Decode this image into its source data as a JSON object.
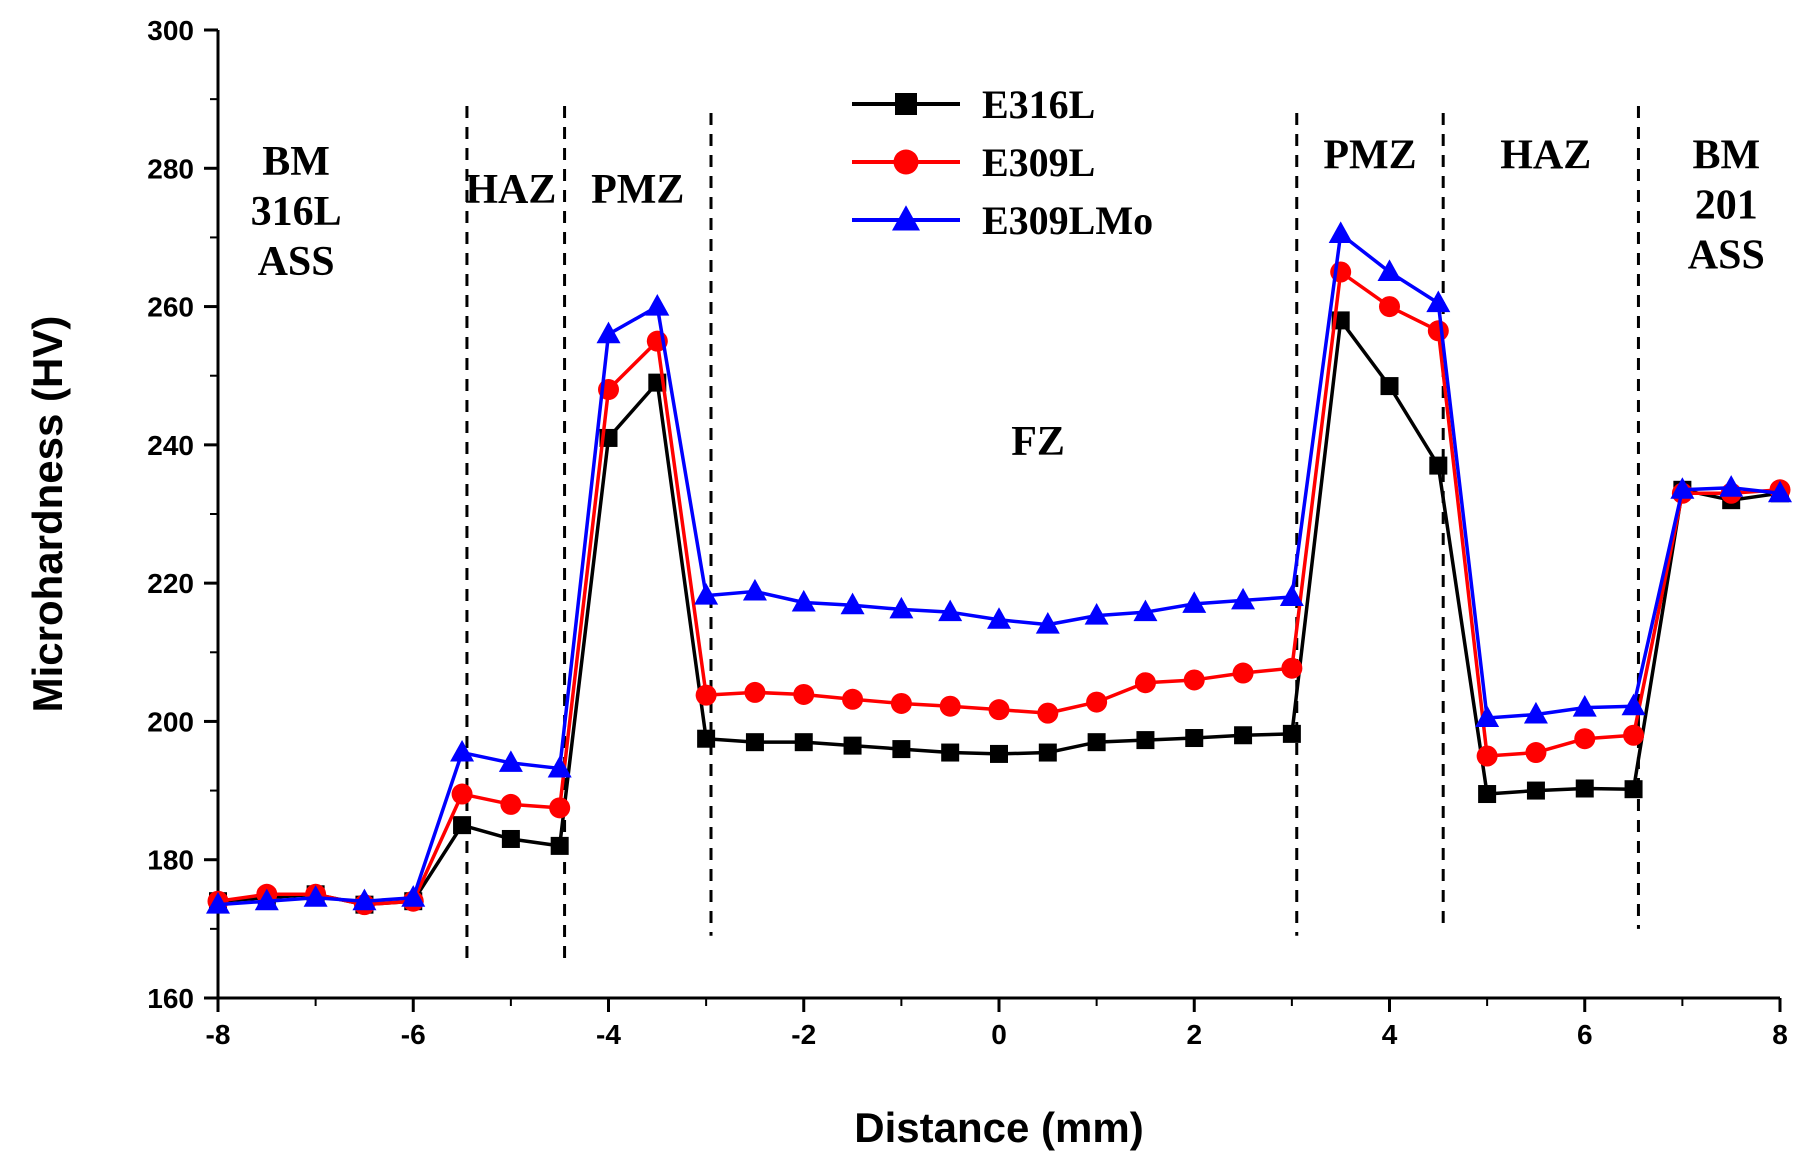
{
  "chart_data": {
    "type": "line",
    "xlabel": "Distance (mm)",
    "ylabel": "Microhardness (HV)",
    "xlim": [
      -8,
      8
    ],
    "ylim": [
      160,
      300
    ],
    "xticks": [
      -8,
      -6,
      -4,
      -2,
      0,
      2,
      4,
      6,
      8
    ],
    "yticks": [
      160,
      180,
      200,
      220,
      240,
      260,
      280,
      300
    ],
    "x": [
      -8,
      -7.5,
      -7,
      -6.5,
      -6,
      -5.5,
      -5,
      -4.5,
      -4,
      -3.5,
      -3,
      -2.5,
      -2,
      -1.5,
      -1,
      -0.5,
      0,
      0.5,
      1,
      1.5,
      2,
      2.5,
      3,
      3.5,
      4,
      4.5,
      5,
      5.5,
      6,
      6.5,
      7,
      7.5,
      8
    ],
    "series": [
      {
        "name": "E316L",
        "color": "#000000",
        "marker": "square",
        "values": [
          174,
          174.5,
          175,
          173.5,
          174,
          185,
          183,
          182,
          241,
          249,
          197.5,
          197,
          197,
          196.5,
          196,
          195.5,
          195.3,
          195.5,
          197,
          197.3,
          197.6,
          198,
          198.2,
          258,
          248.5,
          237,
          189.5,
          190,
          190.3,
          190.2,
          233.5,
          232,
          233
        ]
      },
      {
        "name": "E309L",
        "color": "#ff0000",
        "marker": "circle",
        "values": [
          174,
          175,
          175,
          173.5,
          174,
          189.5,
          188,
          187.5,
          248,
          255,
          203.8,
          204.2,
          203.9,
          203.2,
          202.6,
          202.2,
          201.7,
          201.2,
          202.8,
          205.6,
          206,
          207,
          207.7,
          265,
          260,
          256.5,
          195,
          195.5,
          197.5,
          198,
          233,
          233,
          233.5
        ]
      },
      {
        "name": "E309LMo",
        "color": "#0000ff",
        "marker": "triangle",
        "values": [
          173.5,
          174,
          174.5,
          174,
          174.5,
          195.5,
          194,
          193.2,
          256,
          260,
          218.2,
          218.8,
          217.2,
          216.8,
          216.2,
          215.8,
          214.7,
          214,
          215.3,
          215.8,
          217,
          217.5,
          218,
          270.5,
          265,
          260.5,
          200.5,
          201,
          202,
          202.2,
          233.5,
          233.8,
          233
        ]
      }
    ],
    "boundaries": [
      {
        "x": -5.45,
        "y_top": 289,
        "y_bottom": 165
      },
      {
        "x": -4.45,
        "y_top": 289,
        "y_bottom": 165
      },
      {
        "x": -2.95,
        "y_top": 288,
        "y_bottom": 169
      },
      {
        "x": 3.05,
        "y_top": 288,
        "y_bottom": 169
      },
      {
        "x": 4.55,
        "y_top": 288,
        "y_bottom": 170
      },
      {
        "x": 6.55,
        "y_top": 289,
        "y_bottom": 170
      }
    ],
    "regions": [
      {
        "lines": [
          "BM",
          "316L",
          "ASS"
        ],
        "x": -7.2,
        "y": 279
      },
      {
        "lines": [
          "HAZ"
        ],
        "x": -5.0,
        "y": 275
      },
      {
        "lines": [
          "PMZ"
        ],
        "x": -3.7,
        "y": 275
      },
      {
        "lines": [
          "FZ"
        ],
        "x": 0.4,
        "y": 238.5
      },
      {
        "lines": [
          "PMZ"
        ],
        "x": 3.8,
        "y": 280
      },
      {
        "lines": [
          "HAZ"
        ],
        "x": 5.6,
        "y": 280
      },
      {
        "lines": [
          "BM",
          "201",
          "ASS"
        ],
        "x": 7.45,
        "y": 280
      }
    ],
    "legend_position": "top-center"
  }
}
